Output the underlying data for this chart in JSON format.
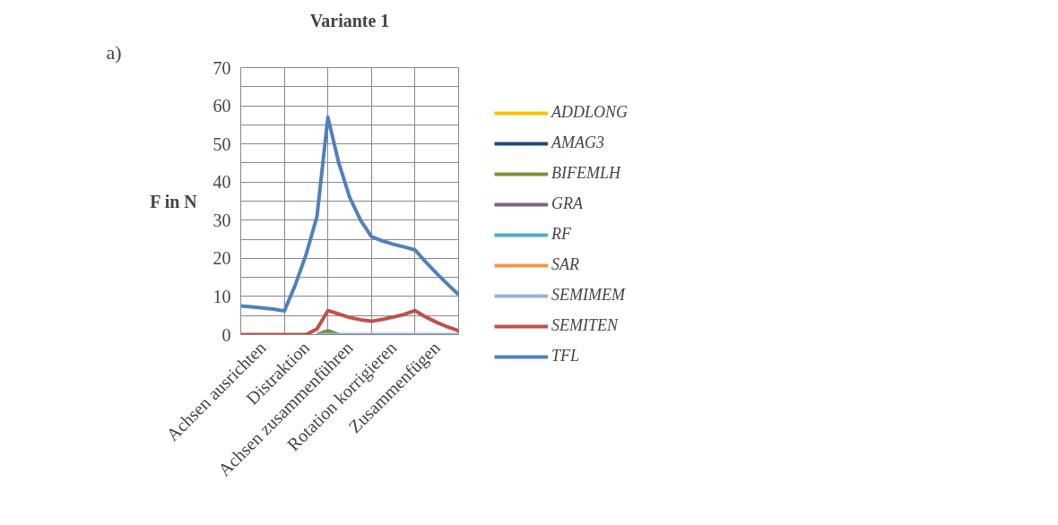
{
  "chart_data": {
    "type": "line",
    "title": "Variante 1",
    "ylabel": "F in N",
    "annotations": [
      "a)"
    ],
    "categories": [
      null,
      null,
      "Achsen ausrichten",
      null,
      null,
      null,
      "Distraktion",
      null,
      null,
      null,
      "Achsen zusammenführen",
      null,
      null,
      null,
      "Rotation korrigieren",
      null,
      null,
      null,
      "Zusammenfügen",
      null,
      null
    ],
    "ylim": [
      0,
      70
    ],
    "yticks": [
      0,
      {
        "value": 5,
        "label": null
      },
      10,
      {
        "value": 15,
        "label": null
      },
      20,
      {
        "value": 25,
        "label": null
      },
      30,
      {
        "value": 35,
        "label": null
      },
      40,
      {
        "value": 45,
        "label": null
      },
      50,
      {
        "value": 55,
        "label": null
      },
      60,
      {
        "value": 65,
        "label": null
      },
      70
    ],
    "grid": true,
    "legend": "right",
    "line_style": "solid",
    "series": [
      {
        "name": "ADDLONG",
        "color": "#ffc000",
        "values": [
          null,
          null,
          null,
          null,
          null,
          null,
          null,
          null,
          null,
          null,
          null,
          null,
          null,
          null,
          null,
          null,
          null,
          null,
          null,
          null,
          null
        ]
      },
      {
        "name": "AMAG3",
        "color": "#1f497d",
        "values": [
          null,
          null,
          null,
          null,
          null,
          null,
          null,
          null,
          null,
          null,
          null,
          null,
          null,
          null,
          null,
          null,
          null,
          null,
          null,
          null,
          null
        ]
      },
      {
        "name": "BIFEMLH",
        "color": "#77933c",
        "values": [
          null,
          null,
          null,
          null,
          null,
          null,
          null,
          0,
          1,
          0,
          null,
          null,
          null,
          null,
          null,
          null,
          null,
          null,
          null,
          null,
          null
        ]
      },
      {
        "name": "GRA",
        "color": "#7f6084",
        "values": [
          null,
          null,
          null,
          null,
          null,
          null,
          null,
          null,
          null,
          null,
          null,
          null,
          null,
          null,
          null,
          null,
          null,
          null,
          null,
          null,
          null
        ]
      },
      {
        "name": "RF",
        "color": "#4bacc6",
        "values": [
          null,
          null,
          null,
          null,
          null,
          null,
          null,
          null,
          null,
          null,
          null,
          null,
          null,
          null,
          null,
          null,
          null,
          null,
          null,
          null,
          null
        ]
      },
      {
        "name": "SAR",
        "color": "#f79646",
        "values": [
          null,
          null,
          null,
          null,
          null,
          null,
          null,
          null,
          null,
          null,
          null,
          null,
          null,
          null,
          null,
          null,
          null,
          null,
          null,
          null,
          null
        ]
      },
      {
        "name": "SEMIMEM",
        "color": "#95b3d7",
        "values": [
          null,
          null,
          null,
          null,
          null,
          null,
          null,
          0,
          0,
          0,
          0,
          0,
          0,
          0,
          0,
          0,
          0,
          0,
          0,
          0,
          0
        ]
      },
      {
        "name": "SEMITEN",
        "color": "#c0504d",
        "values": [
          0,
          0,
          0,
          0,
          0,
          0,
          0,
          1.5,
          6.3,
          5.4,
          4.5,
          3.9,
          3.5,
          4,
          4.6,
          5.3,
          6.3,
          4.6,
          3.2,
          2,
          1
        ]
      },
      {
        "name": "TFL",
        "color": "#4f81bd",
        "values": [
          7.5,
          7.3,
          7,
          6.7,
          6.2,
          13,
          21,
          31,
          57,
          45,
          36,
          30,
          25.7,
          24.6,
          23.7,
          23,
          22.2,
          19,
          16,
          13.2,
          10.5
        ]
      }
    ]
  }
}
